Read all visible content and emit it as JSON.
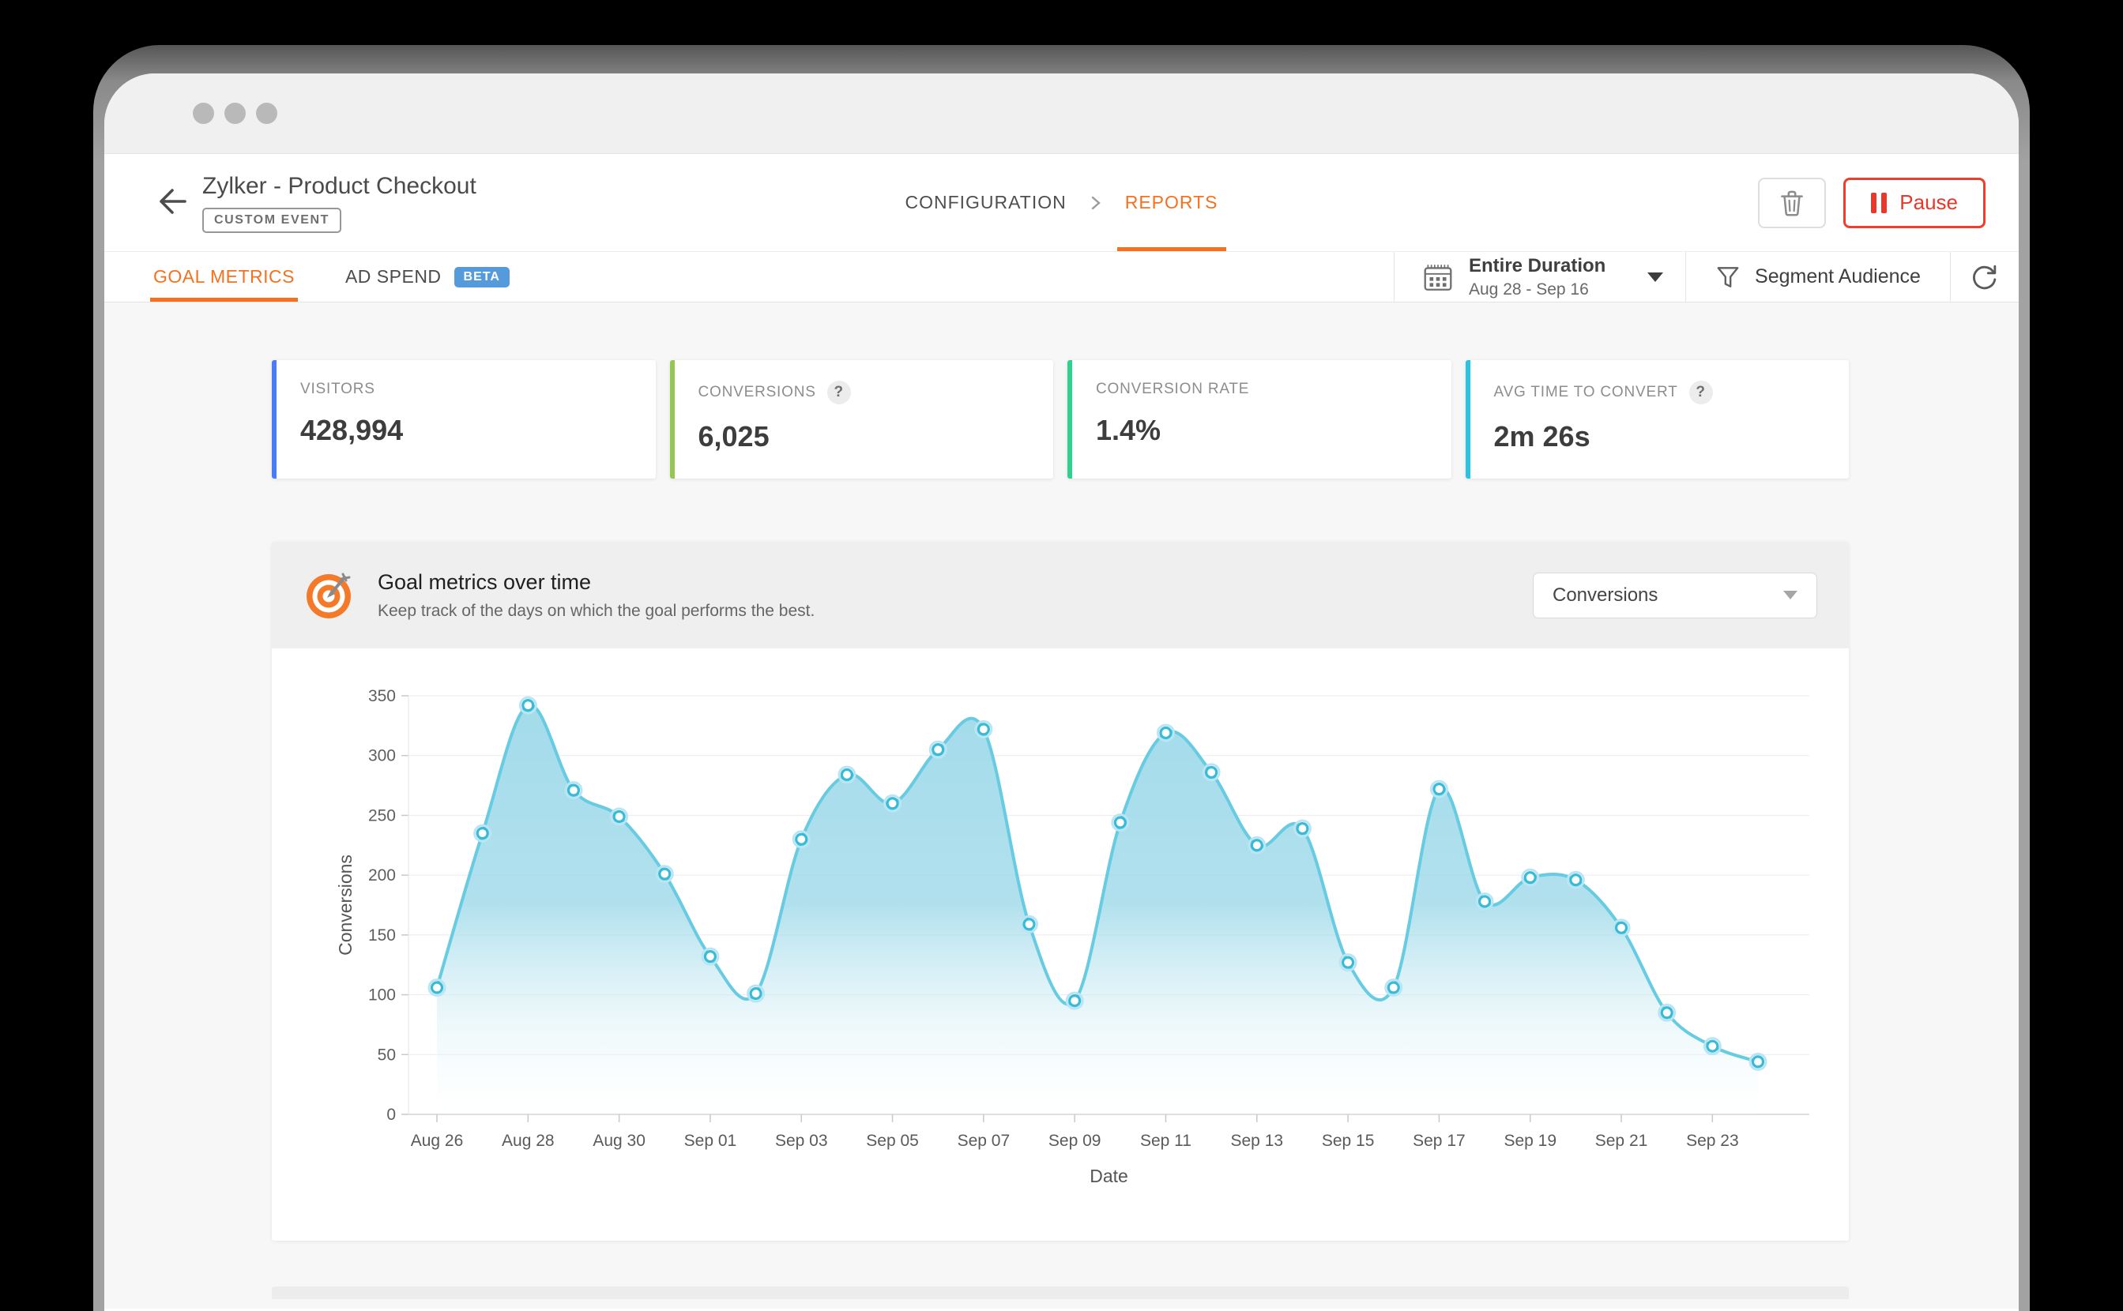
{
  "header": {
    "title": "Zylker - Product Checkout",
    "type_badge": "CUSTOM EVENT",
    "breadcrumb": {
      "configuration": "CONFIGURATION",
      "reports": "REPORTS"
    },
    "actions": {
      "pause_label": "Pause"
    }
  },
  "tabs": {
    "goal_metrics": "GOAL METRICS",
    "ad_spend": "AD SPEND",
    "beta_badge": "BETA"
  },
  "toolbar": {
    "duration_label": "Entire Duration",
    "duration_range": "Aug 28 - Sep 16",
    "segment_label": "Segment Audience"
  },
  "metrics": [
    {
      "label": "VISITORS",
      "value": "428,994",
      "accent": "#4a7cf6"
    },
    {
      "label": "CONVERSIONS",
      "value": "6,025",
      "accent": "#98c655",
      "help": "?"
    },
    {
      "label": "CONVERSION RATE",
      "value": "1.4%",
      "accent": "#2ed28f"
    },
    {
      "label": "AVG TIME TO CONVERT",
      "value": "2m 26s",
      "accent": "#29c3e3",
      "help": "?"
    }
  ],
  "goal_section": {
    "title": "Goal metrics over time",
    "subtitle": "Keep track of the days on which the goal performs the best.",
    "metric_dropdown": "Conversions"
  },
  "colors": {
    "accent_orange": "#f4711f",
    "pause_red": "#e8372b",
    "beta_blue": "#559bdb"
  },
  "chart_data": {
    "type": "area",
    "x": [
      "Aug 26",
      "Aug 27",
      "Aug 28",
      "Aug 29",
      "Aug 30",
      "Aug 31",
      "Sep 01",
      "Sep 02",
      "Sep 03",
      "Sep 04",
      "Sep 05",
      "Sep 06",
      "Sep 07",
      "Sep 08",
      "Sep 09",
      "Sep 10",
      "Sep 11",
      "Sep 12",
      "Sep 13",
      "Sep 14",
      "Sep 15",
      "Sep 16",
      "Sep 17",
      "Sep 18",
      "Sep 19",
      "Sep 20",
      "Sep 21",
      "Sep 22",
      "Sep 23",
      "Sep 24"
    ],
    "values": [
      106,
      235,
      342,
      271,
      249,
      201,
      132,
      101,
      230,
      284,
      260,
      305,
      322,
      159,
      95,
      244,
      319,
      286,
      225,
      239,
      127,
      106,
      272,
      178,
      198,
      196,
      156,
      85,
      57,
      44
    ],
    "series_name": "Conversions",
    "xlabel": "Date",
    "ylabel": "Conversions",
    "ylim": [
      0,
      350
    ],
    "ytick_step": 50,
    "xtick_every": 2,
    "grid": true,
    "legend": false,
    "line_color": "#67cbe1",
    "marker_color": "#39bbd8",
    "fill_top_color": "#9ed9e9",
    "fill_bottom_color": "#ffffff"
  }
}
